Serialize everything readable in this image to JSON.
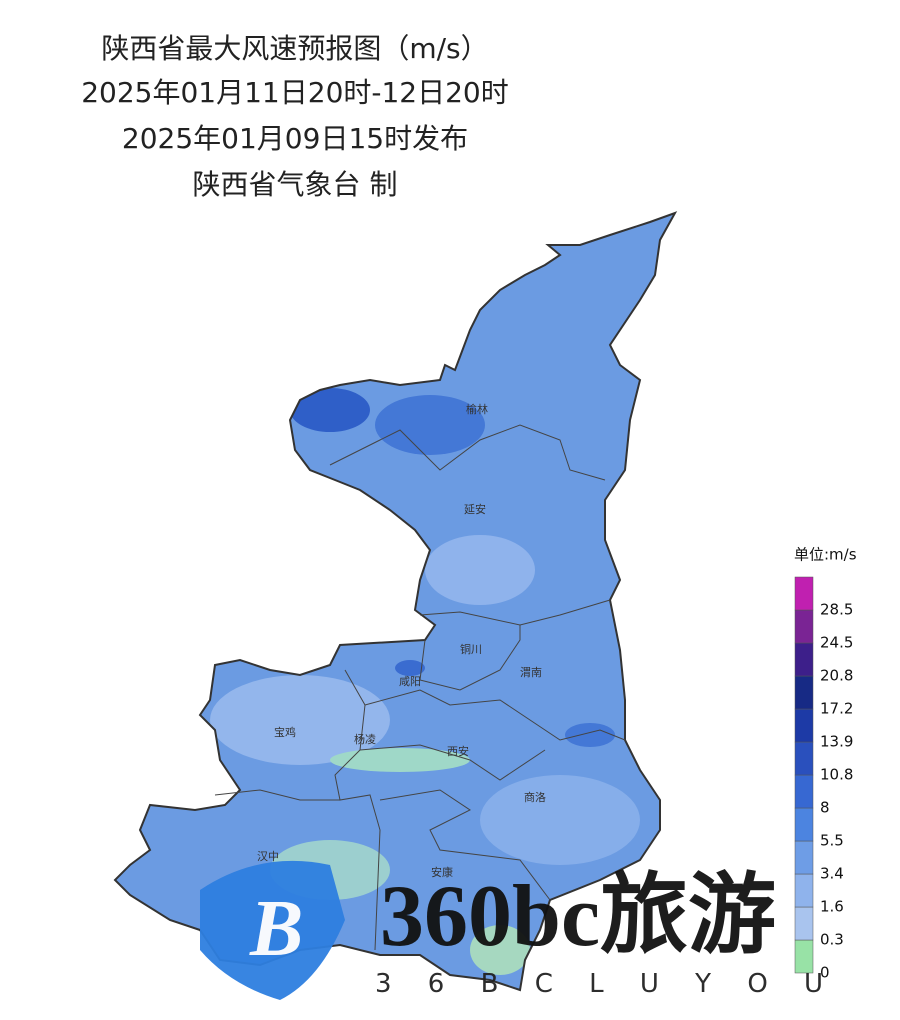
{
  "header": {
    "title": "陕西省最大风速预报图（m/s）",
    "period": "2025年01月11日20时-12日20时",
    "issued": "2025年01月09日15时发布",
    "publisher": "陕西省气象台 制"
  },
  "cities": [
    "榆林",
    "延安",
    "铜川",
    "渭南",
    "咸阳",
    "宝鸡",
    "杨凌",
    "西安",
    "商洛",
    "汉中",
    "安康"
  ],
  "legend": {
    "unit": "单位:m/s",
    "ticks": [
      "0",
      "0.3",
      "1.6",
      "3.4",
      "5.5",
      "8",
      "10.8",
      "13.9",
      "17.2",
      "20.8",
      "24.5",
      "28.5"
    ],
    "colors": [
      "#98e2a6",
      "#a9c4ee",
      "#8fb3ec",
      "#6e9de6",
      "#4c84e0",
      "#3768d2",
      "#2a50bd",
      "#1d3aa6",
      "#172a85",
      "#3d1f8a",
      "#7a2494",
      "#c020b0"
    ]
  },
  "watermark": {
    "brand": "360bc旅游",
    "sub": "3 6 B C L U Y O U"
  }
}
